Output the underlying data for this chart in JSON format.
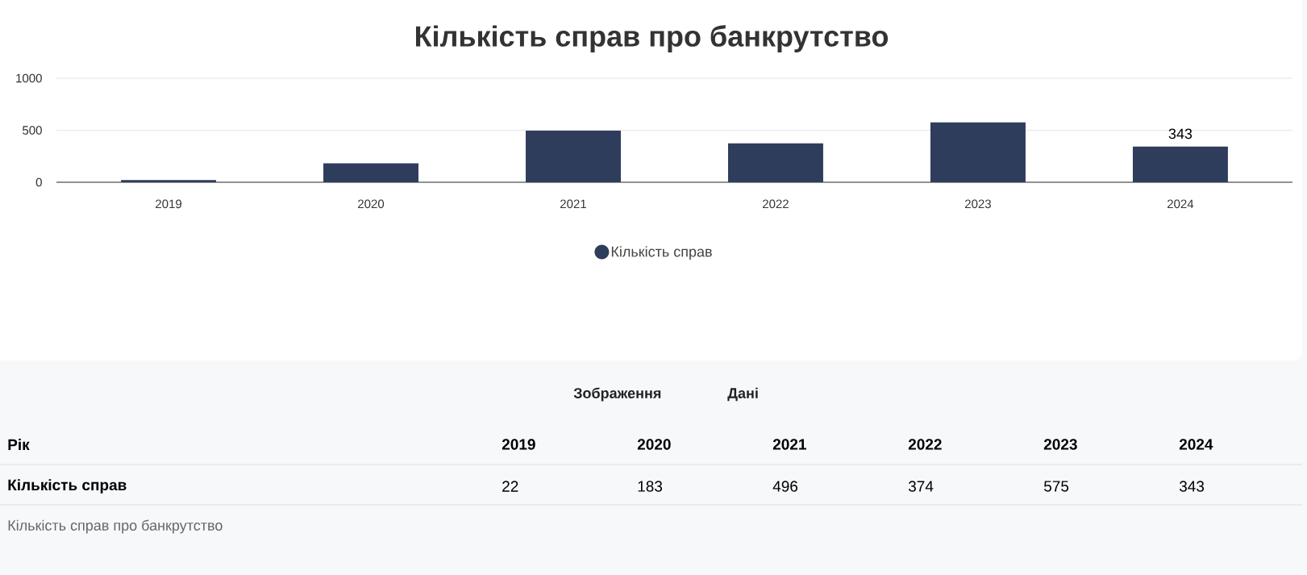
{
  "chart_data": {
    "type": "bar",
    "title": "Кількість справ про банкрутство",
    "categories": [
      "2019",
      "2020",
      "2021",
      "2022",
      "2023",
      "2024"
    ],
    "series": [
      {
        "name": "Кількість справ",
        "color": "#2f3d5c",
        "values": [
          22,
          183,
          496,
          374,
          575,
          343
        ],
        "value_labels": [
          null,
          null,
          null,
          null,
          null,
          "343"
        ]
      }
    ],
    "ylim": [
      0,
      1000
    ],
    "yticks": [
      0,
      500,
      1000
    ],
    "grid": "y",
    "legend": "bottom",
    "annotations": [
      "Зображення",
      "Дані",
      "Рік",
      "22",
      "183",
      "496",
      "374",
      "575",
      "343",
      "Кількість справ про банкрутство"
    ]
  }
}
